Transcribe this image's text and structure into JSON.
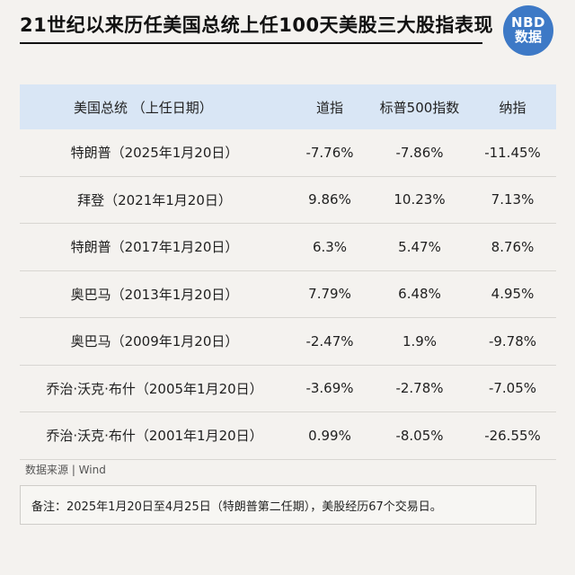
{
  "title": "21世纪以来历任美国总统上任100天美股三大股指表现",
  "logo": {
    "line1": "NBD",
    "line2": "数据"
  },
  "table": {
    "headers": [
      "美国总统 （上任日期）",
      "道指",
      "标普500指数",
      "纳指"
    ],
    "rows": [
      [
        "特朗普（2025年1月20日）",
        "-7.76%",
        "-7.86%",
        "-11.45%"
      ],
      [
        "拜登（2021年1月20日）",
        "9.86%",
        "10.23%",
        "7.13%"
      ],
      [
        "特朗普（2017年1月20日）",
        "6.3%",
        "5.47%",
        "8.76%"
      ],
      [
        "奥巴马（2013年1月20日）",
        "7.79%",
        "6.48%",
        "4.95%"
      ],
      [
        "奥巴马（2009年1月20日）",
        "-2.47%",
        "1.9%",
        "-9.78%"
      ],
      [
        "乔治·沃克·布什（2005年1月20日）",
        "-3.69%",
        "-2.78%",
        "-7.05%"
      ],
      [
        "乔治·沃克·布什（2001年1月20日）",
        "0.99%",
        "-8.05%",
        "-26.55%"
      ]
    ]
  },
  "source": "数据来源 | Wind",
  "note": "备注：2025年1月20日至4月25日（特朗普第二任期），美股经历67个交易日。"
}
